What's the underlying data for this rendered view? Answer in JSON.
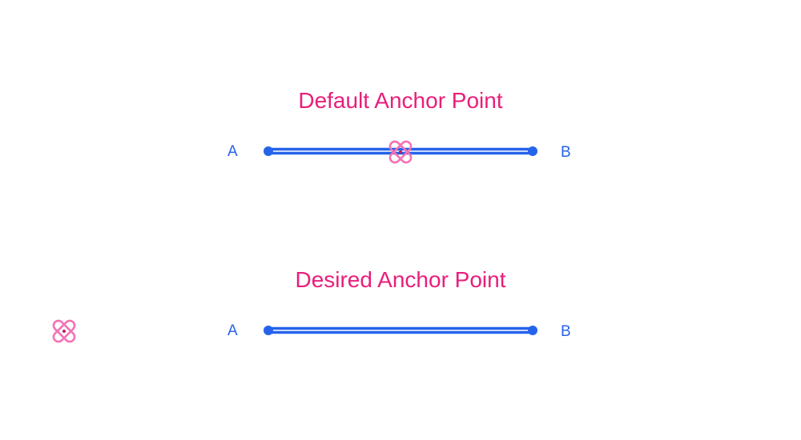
{
  "colors": {
    "title": "#e91e7a",
    "line": "#2563eb",
    "anchor": "#f472b6",
    "anchor_center": "#c2185b"
  },
  "icons": {
    "anchor": "anchor-point-icon",
    "endpoint": "endpoint-dot-icon"
  },
  "default_section": {
    "title": "Default Anchor Point",
    "label_start": "A",
    "label_end": "B"
  },
  "desired_section": {
    "title": "Desired Anchor Point",
    "label_start": "A",
    "label_end": "B"
  }
}
